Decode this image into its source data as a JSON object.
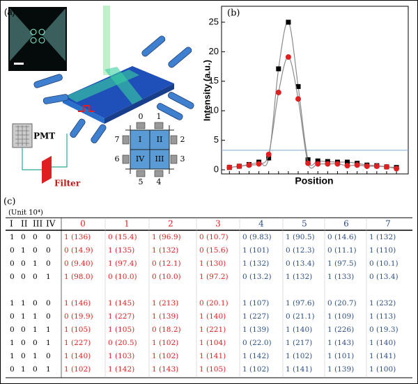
{
  "panel_a": {
    "label": "(a)",
    "pmt": "PMT",
    "filter": "Filter",
    "ports": [
      "0",
      "1",
      "2",
      "3",
      "4",
      "5",
      "6",
      "7"
    ],
    "regions": [
      "I",
      "II",
      "III",
      "IV"
    ]
  },
  "chart_data": {
    "type": "line",
    "label": "(b)",
    "ylabel": "Intensity (a.u.)",
    "xlabel": "Position",
    "categories": [
      null,
      null,
      null,
      null,
      null,
      null,
      null,
      null,
      null,
      null,
      null,
      null,
      null,
      null,
      null,
      null,
      null,
      null
    ],
    "series": [
      {
        "color": "#000000",
        "marker": "square",
        "values": [
          0.4,
          0.6,
          0.9,
          1.3,
          2.0,
          17.1,
          25,
          14.1,
          1.7,
          1.5,
          1.4,
          1.3,
          1.3,
          1.1,
          0.8,
          0.7,
          0.5,
          0.4
        ]
      },
      {
        "color": "#e02020",
        "marker": "circle",
        "values": [
          0.4,
          0.6,
          0.8,
          1.0,
          2.6,
          13.1,
          19.1,
          12.0,
          1.1,
          1.0,
          1.0,
          1.0,
          0.7,
          0.8,
          0.6,
          0.6,
          0.5,
          0.2
        ]
      }
    ],
    "curve_color": "#8a8a8a",
    "reference_line": 3.3,
    "reference_color": "#7aa6d6",
    "ylim": [
      -0.7,
      27.7
    ],
    "yticks": [
      0,
      5,
      10,
      15,
      20,
      25
    ]
  },
  "table": {
    "label": "(c)",
    "unit": "(Unit 10⁴)",
    "header": [
      "I",
      "II",
      "III",
      "IV",
      "0",
      "1",
      "2",
      "3",
      "4",
      "5",
      "6",
      "7"
    ],
    "groups": [
      {
        "rows": [
          [
            "1",
            "0",
            "0",
            "0",
            "1 (136)",
            "0 (15.4)",
            "1 (96.9)",
            "0 (10.7)",
            "0 (9.83)",
            "1 (90.5)",
            "0 (14.6)",
            "1 (132)"
          ],
          [
            "0",
            "1",
            "0",
            "0",
            "0 (14.9)",
            "1 (135)",
            "1 (132)",
            "0 (15.6)",
            "1 (101)",
            "0 (12.3)",
            "0 (11.1)",
            "1 (110)"
          ],
          [
            "0",
            "0",
            "1",
            "0",
            "0 (9.40)",
            "1 (97.4)",
            "0 (12.1)",
            "1 (130)",
            "1 (132)",
            "0 (13.4)",
            "1 (97.5)",
            "0 (10.1)"
          ],
          [
            "0",
            "0",
            "0",
            "1",
            "1 (98.0)",
            "0 (10.0)",
            "0 (10.0)",
            "1 (97.2)",
            "0 (13.2)",
            "1 (132)",
            "1 (133)",
            "0 (13.4)"
          ]
        ]
      },
      {
        "rows": [
          [
            "1",
            "1",
            "0",
            "0",
            "1 (146)",
            "1 (145)",
            "1 (213)",
            "0 (20.1)",
            "1 (107)",
            "1 (97.6)",
            "0 (20.7)",
            "1 (232)"
          ],
          [
            "0",
            "1",
            "1",
            "0",
            "0 (19.9)",
            "1 (227)",
            "1 (139)",
            "1 (140)",
            "1 (227)",
            "0 (21.1)",
            "1 (109)",
            "1 (113)"
          ],
          [
            "0",
            "0",
            "1",
            "1",
            "1 (105)",
            "1 (105)",
            "0 (18.2)",
            "1 (221)",
            "1 (139)",
            "1 (140)",
            "1 (226)",
            "0 (19.3)"
          ],
          [
            "1",
            "0",
            "0",
            "1",
            "1 (227)",
            "0 (20.5)",
            "1 (102)",
            "1 (104)",
            "0 (22.0)",
            "1 (217)",
            "1 (143)",
            "1 (140)"
          ],
          [
            "1",
            "0",
            "1",
            "0",
            "1 (140)",
            "1 (103)",
            "1 (102)",
            "1 (141)",
            "1 (142)",
            "1 (102)",
            "1 (101)",
            "1 (141)"
          ],
          [
            "0",
            "1",
            "0",
            "1",
            "1 (102)",
            "1 (142)",
            "1 (143)",
            "1 (105)",
            "1 (102)",
            "1 (141)",
            "1 (139)",
            "1 (100)"
          ]
        ]
      }
    ]
  }
}
